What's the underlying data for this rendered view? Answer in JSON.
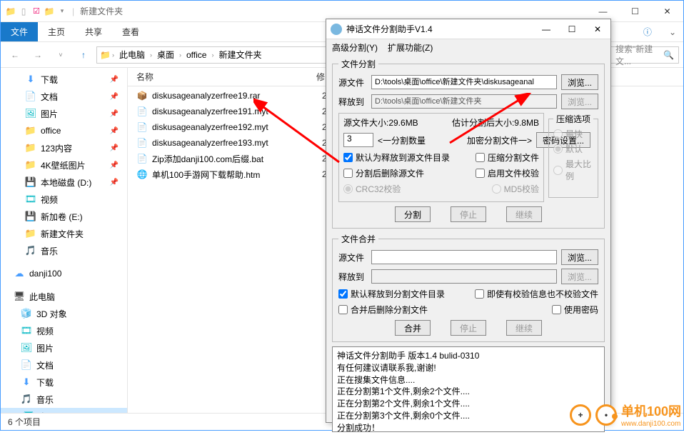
{
  "explorer": {
    "title": "新建文件夹",
    "tabs": {
      "file": "文件",
      "home": "主页",
      "share": "共享",
      "view": "查看"
    },
    "breadcrumbs": [
      "此电脑",
      "桌面",
      "office",
      "新建文件夹"
    ],
    "search_placeholder": "搜索\"新建文...",
    "columns": {
      "name": "名称",
      "date": "修"
    },
    "status": "6 个项目"
  },
  "sidebar": {
    "items": [
      {
        "label": "下载",
        "icon": "⬇",
        "cls": "c-blue",
        "pin": true
      },
      {
        "label": "文档",
        "icon": "📄",
        "cls": "c-teal",
        "pin": true
      },
      {
        "label": "图片",
        "icon": "🖼",
        "cls": "c-teal",
        "pin": true
      },
      {
        "label": "office",
        "icon": "📁",
        "cls": "c-orange",
        "pin": true
      },
      {
        "label": "123内容",
        "icon": "📁",
        "cls": "c-orange",
        "pin": true
      },
      {
        "label": "4K壁纸图片",
        "icon": "📁",
        "cls": "c-orange",
        "pin": true
      },
      {
        "label": "本地磁盘 (D:)",
        "icon": "💾",
        "cls": "c-dark",
        "pin": true
      },
      {
        "label": "视频",
        "icon": "🎞",
        "cls": "c-teal",
        "pin": false
      },
      {
        "label": "新加卷 (E:)",
        "icon": "💾",
        "cls": "c-dark",
        "pin": false
      },
      {
        "label": "新建文件夹",
        "icon": "📁",
        "cls": "c-orange",
        "pin": false
      },
      {
        "label": "音乐",
        "icon": "🎵",
        "cls": "c-teal",
        "pin": false
      }
    ],
    "danji": "danji100",
    "thispc": "此电脑",
    "pcitems": [
      {
        "label": "3D 对象",
        "icon": "🧊",
        "cls": "c-teal"
      },
      {
        "label": "视频",
        "icon": "🎞",
        "cls": "c-teal"
      },
      {
        "label": "图片",
        "icon": "🖼",
        "cls": "c-teal"
      },
      {
        "label": "文档",
        "icon": "📄",
        "cls": "c-teal"
      },
      {
        "label": "下载",
        "icon": "⬇",
        "cls": "c-blue"
      },
      {
        "label": "音乐",
        "icon": "🎵",
        "cls": "c-teal"
      },
      {
        "label": "桌面",
        "icon": "🖥",
        "cls": "c-teal"
      }
    ]
  },
  "files": [
    {
      "name": "diskusageanalyzerfree19.rar",
      "icon": "📦",
      "date": "202",
      "iconcolor": "#4a9eff"
    },
    {
      "name": "diskusageanalyzerfree191.myt",
      "icon": "📄",
      "date": "202",
      "iconcolor": "#999"
    },
    {
      "name": "diskusageanalyzerfree192.myt",
      "icon": "📄",
      "date": "202",
      "iconcolor": "#999"
    },
    {
      "name": "diskusageanalyzerfree193.myt",
      "icon": "📄",
      "date": "202",
      "iconcolor": "#999"
    },
    {
      "name": "Zip添加danji100.com后缀.bat",
      "icon": "📄",
      "date": "202",
      "iconcolor": "#999"
    },
    {
      "name": "单机100手游网下载帮助.htm",
      "icon": "🌐",
      "date": "202",
      "iconcolor": "#1979ca"
    }
  ],
  "dialog": {
    "title": "神话文件分割助手V1.4",
    "menu": {
      "adv": "高级分割(Y)",
      "ext": "扩展功能(Z)"
    },
    "split": {
      "legend": "文件分割",
      "src_lab": "源文件",
      "src": "D:\\tools\\桌面\\office\\新建文件夹\\diskusageanal",
      "dst_lab": "释放到",
      "dst": "D:\\tools\\桌面\\office\\新建文件夹",
      "browse": "浏览...",
      "size_lab": "源文件大小:29.6MB",
      "est_lab": "估计分割后大小:9.8MB",
      "count": "3",
      "count_lab": "<一分割数量",
      "enc_lab": "加密分割文件一>",
      "pwd_btn": "密码设置...",
      "cb1": "默认为释放到源文件目录",
      "cb2": "压缩分割文件",
      "cb3": "分割后删除源文件",
      "cb4": "启用文件校验",
      "rb_crc": "CRC32校验",
      "rb_md5": "MD5校验",
      "comp_legend": "压缩选项",
      "rb_fast": "最快",
      "rb_def": "默认",
      "rb_max": "最大比例",
      "btn_split": "分割",
      "btn_stop": "停止",
      "btn_cont": "继续"
    },
    "merge": {
      "legend": "文件合并",
      "src_lab": "源文件",
      "dst_lab": "释放到",
      "browse": "浏览...",
      "cb1": "默认释放到分割文件目录",
      "cb2": "即使有校验信息也不校验文件",
      "cb3": "合并后删除分割文件",
      "cb4": "使用密码",
      "btn_merge": "合并",
      "btn_stop": "停止",
      "btn_cont": "继续"
    },
    "log": [
      "神话文件分割助手  版本1.4  bulid-0310",
      "有任何建议请联系我,谢谢!",
      "正在搜集文件信息....",
      "正在分割第1个文件,剩余2个文件....",
      "正在分割第2个文件,剩余1个文件....",
      "正在分割第3个文件,剩余0个文件....",
      "分割成功！"
    ]
  },
  "watermark": {
    "text": "单机100网",
    "sub": "www.danji100.com"
  }
}
